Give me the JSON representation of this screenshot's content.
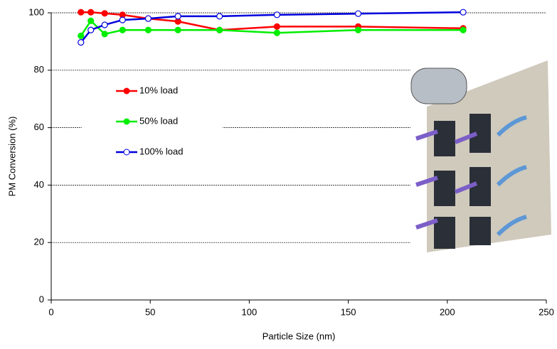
{
  "chart_data": {
    "type": "line",
    "x_label": "Particle Size (nm)",
    "y_label": "PM Conversion (%)",
    "xlim": [
      0,
      250
    ],
    "xticks": [
      0,
      50,
      100,
      150,
      200,
      250
    ],
    "ylim": [
      0,
      100
    ],
    "yticks": [
      0,
      20,
      40,
      60,
      80,
      100
    ],
    "grid": true,
    "legend": "upper left",
    "series": [
      {
        "name": "10% load",
        "color": "#ff0000",
        "marker": "filled",
        "x": [
          15,
          20,
          27,
          36,
          49,
          64,
          85,
          114,
          155,
          208
        ],
        "values": [
          100.2,
          100.2,
          99.8,
          99.3,
          98,
          97,
          94,
          95.2,
          95.2,
          94.6
        ]
      },
      {
        "name": "50% load",
        "color": "#00ee00",
        "marker": "filled",
        "x": [
          15,
          20,
          27,
          36,
          49,
          64,
          85,
          114,
          155,
          208
        ],
        "values": [
          92,
          97.2,
          92.6,
          94,
          94,
          94,
          94,
          93,
          94,
          94
        ]
      },
      {
        "name": "100% load",
        "color": "#0000dd",
        "marker": "open",
        "x": [
          15,
          20,
          27,
          36,
          49,
          64,
          85,
          114,
          155,
          208
        ],
        "values": [
          89.7,
          94,
          95.8,
          97.5,
          98,
          98.8,
          98.8,
          99.3,
          99.7,
          100.2
        ]
      }
    ]
  }
}
